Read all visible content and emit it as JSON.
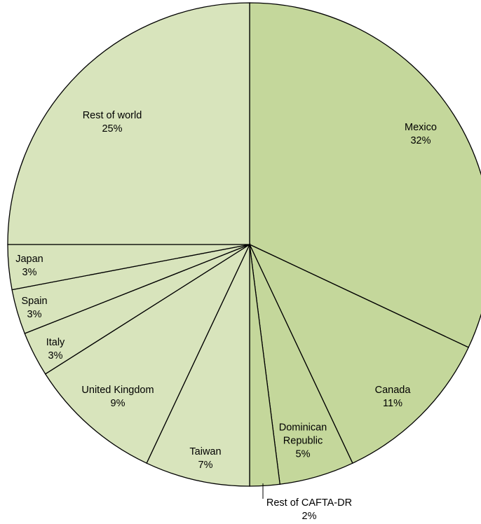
{
  "chart_data": {
    "type": "pie",
    "categories": [
      "Mexico",
      "Canada",
      "Dominican Republic",
      "Rest of CAFTA-DR",
      "Taiwan",
      "United Kingdom",
      "Italy",
      "Spain",
      "Japan",
      "Rest of world"
    ],
    "values": [
      32,
      11,
      5,
      2,
      7,
      9,
      3,
      3,
      3,
      25
    ],
    "value_labels": [
      "32%",
      "11%",
      "5%",
      "2%",
      "7%",
      "9%",
      "3%",
      "3%",
      "3%",
      "25%"
    ],
    "colors": [
      "#c4d79b",
      "#c4d79b",
      "#c4d79b",
      "#c4d79b",
      "#d8e4bc",
      "#d8e4bc",
      "#d8e4bc",
      "#d8e4bc",
      "#d8e4bc",
      "#d8e4bc"
    ]
  }
}
